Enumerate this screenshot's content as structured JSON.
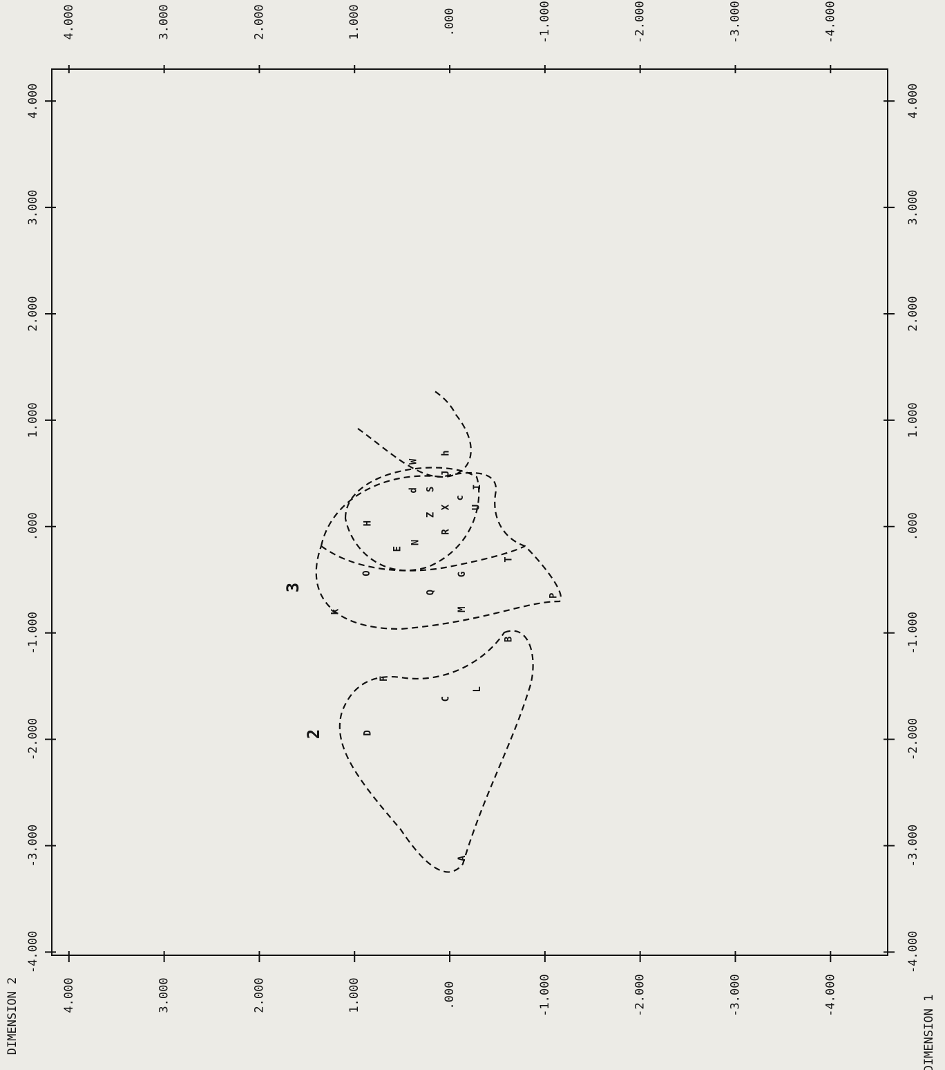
{
  "chart_data": {
    "type": "scatter",
    "x_label": "DIMENSION 1",
    "y_label": "DIMENSION 2",
    "labels": [
      "W",
      "h",
      "J",
      "S",
      "d",
      "c",
      "I",
      "U",
      "X",
      "Z",
      "H",
      "R",
      "N",
      "E",
      "T",
      "O",
      "G",
      "Q",
      "P",
      "K",
      "M",
      "B",
      "F",
      "L",
      "C",
      "D",
      "A"
    ],
    "x": [
      0.61,
      0.69,
      0.5,
      0.35,
      0.34,
      0.27,
      0.37,
      0.18,
      0.18,
      0.11,
      0.03,
      -0.05,
      -0.15,
      -0.21,
      -0.31,
      -0.44,
      -0.45,
      -0.62,
      -0.65,
      -0.8,
      -0.78,
      -1.06,
      -1.43,
      -1.53,
      -1.62,
      -1.94,
      -3.12
    ],
    "values": [
      0.38,
      0.04,
      0.04,
      0.2,
      0.38,
      -0.11,
      -0.29,
      -0.28,
      0.04,
      0.2,
      0.86,
      0.04,
      0.36,
      0.55,
      -0.62,
      0.87,
      -0.13,
      0.2,
      -1.09,
      1.2,
      -0.13,
      -0.62,
      0.69,
      -0.29,
      0.04,
      0.86,
      -0.13
    ],
    "annotations": [
      "3",
      "2"
    ],
    "xlim": [
      -4.03,
      4.3
    ],
    "ylim": [
      -4.6,
      4.18
    ],
    "xticks": [
      {
        "value": 4,
        "label": "4.000"
      },
      {
        "value": 3,
        "label": "3.000"
      },
      {
        "value": 2,
        "label": "2.000"
      },
      {
        "value": 1,
        "label": "1.000"
      },
      {
        "value": 0,
        "label": ".000"
      },
      {
        "value": -1,
        "label": "-1.000"
      },
      {
        "value": -2,
        "label": "-2.000"
      },
      {
        "value": -3,
        "label": "-3.000"
      },
      {
        "value": -4,
        "label": "-4.000"
      }
    ],
    "yticks": [
      {
        "value": 4,
        "label": "4.000"
      },
      {
        "value": 3,
        "label": "3.000"
      },
      {
        "value": 2,
        "label": "2.000"
      },
      {
        "value": 1,
        "label": "1.000"
      },
      {
        "value": 0,
        "label": ".000"
      },
      {
        "value": -1,
        "label": "-1.000"
      },
      {
        "value": -2,
        "label": "-2.000"
      },
      {
        "value": -3,
        "label": "-3.000"
      },
      {
        "value": -4,
        "label": "-4.000"
      }
    ],
    "color": "#111111"
  }
}
